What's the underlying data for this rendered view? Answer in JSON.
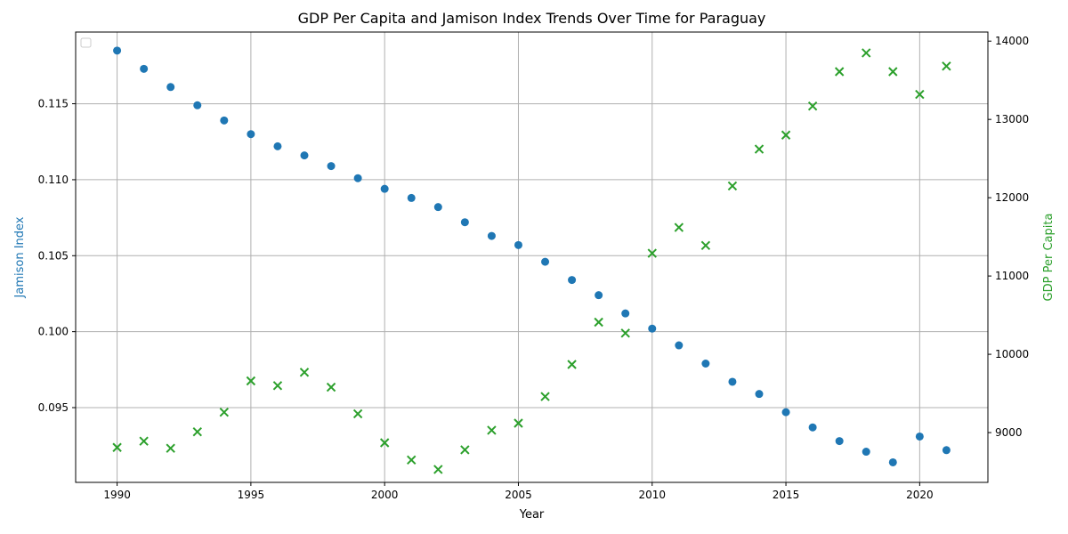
{
  "chart_data": {
    "type": "scatter",
    "title": "GDP Per Capita and Jamison Index Trends Over Time for Paraguay",
    "xlabel": "Year",
    "ylabel_left": "Jamison Index",
    "ylabel_right": "GDP Per Capita",
    "x": [
      1990,
      1991,
      1992,
      1993,
      1994,
      1995,
      1996,
      1997,
      1998,
      1999,
      2000,
      2001,
      2002,
      2003,
      2004,
      2005,
      2006,
      2007,
      2008,
      2009,
      2010,
      2011,
      2012,
      2013,
      2014,
      2015,
      2016,
      2017,
      2018,
      2019,
      2020,
      2021
    ],
    "series": [
      {
        "axis": "left",
        "marker": "circle",
        "color": "#1f77b4",
        "values": [
          0.1185,
          0.1173,
          0.1161,
          0.1149,
          0.1139,
          0.113,
          0.1122,
          0.1116,
          0.1109,
          0.1101,
          0.1094,
          0.1088,
          0.1082,
          0.1072,
          0.1063,
          0.1057,
          0.1046,
          0.1034,
          0.1024,
          0.1012,
          0.1002,
          0.0991,
          0.0979,
          0.0967,
          0.0959,
          0.0947,
          0.0937,
          0.0928,
          0.0921,
          0.0914,
          0.0931,
          0.0922
        ]
      },
      {
        "axis": "right",
        "marker": "x",
        "color": "#2ca02c",
        "values": [
          8810,
          8890,
          8800,
          9010,
          9260,
          9660,
          9600,
          9770,
          9580,
          9240,
          8870,
          8650,
          8530,
          8780,
          9030,
          9120,
          9460,
          9870,
          10410,
          10270,
          11290,
          11620,
          11390,
          12150,
          12620,
          12800,
          13170,
          13610,
          13850,
          13610,
          13320,
          13680
        ]
      }
    ],
    "xlim": [
      1988.45,
      2022.55
    ],
    "ylim_left": [
      0.09008,
      0.11972
    ],
    "ylim_right": [
      8364,
      14116
    ],
    "xticks": [
      "1990",
      "1995",
      "2000",
      "2005",
      "2010",
      "2015",
      "2020"
    ],
    "yticks_left": [
      "0.095",
      "0.100",
      "0.105",
      "0.110",
      "0.115"
    ],
    "yticks_right": [
      "9000",
      "10000",
      "11000",
      "12000",
      "13000",
      "14000"
    ],
    "grid": true,
    "legend": "upper-left, empty"
  }
}
